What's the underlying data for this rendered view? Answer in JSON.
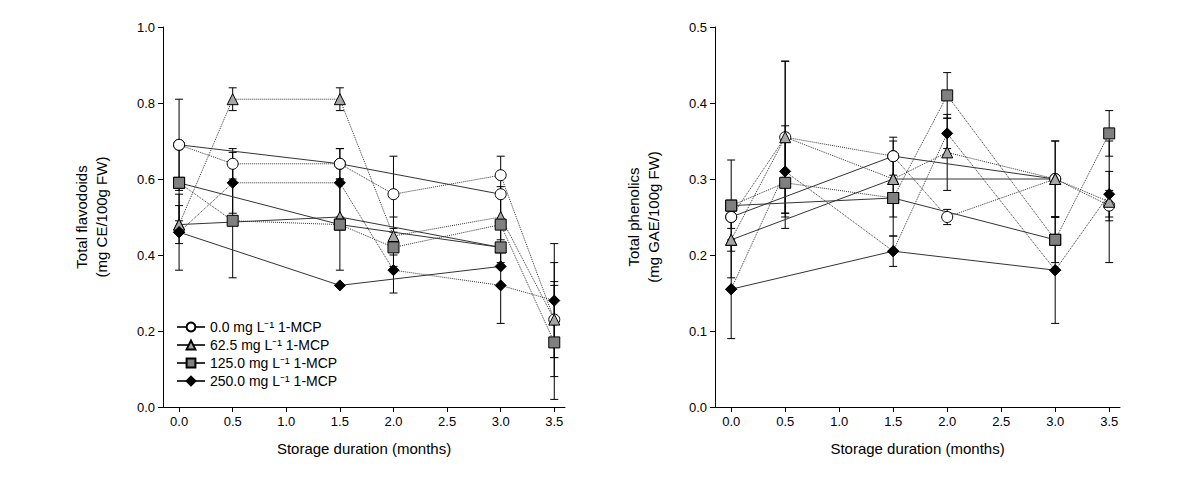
{
  "chart_data": [
    {
      "type": "line",
      "x_label": "Storage duration (months)",
      "y_label": "Total flavodoids\n(mg CE/100g FW)",
      "xlim": [
        -0.15,
        3.6
      ],
      "xticks": [
        {
          "value": 0,
          "label": "0.0"
        },
        0.5,
        {
          "value": 1,
          "label": "1.0"
        },
        1.5,
        {
          "value": 2,
          "label": "2.0"
        },
        2.5,
        {
          "value": 3,
          "label": "3.0"
        },
        3.5
      ],
      "ylim": [
        0,
        1
      ],
      "yticks": [
        {
          "value": 0,
          "label": "0.0"
        },
        0.2,
        0.4,
        0.6,
        0.8,
        {
          "value": 1,
          "label": "1.0"
        }
      ],
      "grid": false,
      "legend": "lower left",
      "series": [
        {
          "name": "0.0 mg L⁻¹ 1-MCP",
          "color": "#ffffff",
          "marker": "circle",
          "line_style": "solid",
          "x": [
            0,
            1.5,
            3
          ],
          "values": [
            0.69,
            0.64,
            0.56
          ]
        },
        {
          "name": "0.0 mg L⁻¹ 1-MCP",
          "color": "#ffffff",
          "marker": "circle",
          "line_style": "dotted",
          "x": [
            0,
            0.5,
            1.5,
            2,
            3,
            3.5
          ],
          "values": [
            0.69,
            0.64,
            0.64,
            0.56,
            0.61,
            0.23
          ],
          "errors": [
            0.12,
            0.04,
            0.04,
            0.1,
            0.05,
            0.1
          ]
        },
        {
          "name": "62.5 mg L⁻¹ 1-MCP",
          "color": "#a6a6a6",
          "marker": "triangle",
          "line_style": "solid",
          "x": [
            0,
            1.5,
            3
          ],
          "values": [
            0.48,
            0.5,
            0.42
          ]
        },
        {
          "name": "62.5 mg L⁻¹ 1-MCP",
          "color": "#a6a6a6",
          "marker": "triangle",
          "line_style": "dotted",
          "x": [
            0,
            0.5,
            1.5,
            2,
            3,
            3.5
          ],
          "values": [
            0.48,
            0.81,
            0.81,
            0.45,
            0.5,
            0.23
          ],
          "errors": [
            0.05,
            0.03,
            0.03,
            0.05,
            0.06,
            0.15
          ]
        },
        {
          "name": "125.0 mg L⁻¹ 1-MCP",
          "color": "#808080",
          "marker": "square",
          "line_style": "solid",
          "x": [
            0,
            1.5,
            3
          ],
          "values": [
            0.59,
            0.48,
            0.42
          ]
        },
        {
          "name": "125.0 mg L⁻¹ 1-MCP",
          "color": "#808080",
          "marker": "square",
          "line_style": "dotted",
          "x": [
            0,
            0.5,
            1.5,
            2,
            3,
            3.5
          ],
          "values": [
            0.59,
            0.49,
            0.48,
            0.42,
            0.48,
            0.17
          ],
          "errors": [
            0.1,
            0.15,
            0.12,
            0.05,
            0.1,
            0.15
          ]
        },
        {
          "name": "250.0 mg L⁻¹ 1-MCP",
          "color": "#000000",
          "marker": "diamond",
          "line_style": "solid",
          "x": [
            0,
            1.5,
            3
          ],
          "values": [
            0.46,
            0.32,
            0.37
          ]
        },
        {
          "name": "250.0 mg L⁻¹ 1-MCP",
          "color": "#000000",
          "marker": "diamond",
          "line_style": "dotted",
          "x": [
            0,
            0.5,
            1.5,
            2,
            3,
            3.5
          ],
          "values": [
            0.46,
            0.59,
            0.59,
            0.36,
            0.32,
            0.28
          ],
          "errors": [
            0.1,
            0.08,
            0.09,
            0.06,
            0.1,
            0.15
          ]
        }
      ]
    },
    {
      "type": "line",
      "x_label": "Storage duration (months)",
      "y_label": "Total phenolics\n(mg GAE/100g FW)",
      "xlim": [
        -0.15,
        3.6
      ],
      "xticks": [
        {
          "value": 0,
          "label": "0.0"
        },
        0.5,
        {
          "value": 1,
          "label": "1.0"
        },
        1.5,
        {
          "value": 2,
          "label": "2.0"
        },
        2.5,
        {
          "value": 3,
          "label": "3.0"
        },
        3.5
      ],
      "ylim": [
        0,
        0.5
      ],
      "yticks": [
        {
          "value": 0,
          "label": "0.0"
        },
        0.1,
        0.2,
        0.3,
        0.4,
        0.5
      ],
      "grid": false,
      "series": [
        {
          "name": "0.0 mg L⁻¹ 1-MCP",
          "color": "#ffffff",
          "marker": "circle",
          "line_style": "solid",
          "x": [
            0,
            1.5,
            3
          ],
          "values": [
            0.25,
            0.33,
            0.3
          ]
        },
        {
          "name": "0.0 mg L⁻¹ 1-MCP",
          "color": "#ffffff",
          "marker": "circle",
          "line_style": "dotted",
          "x": [
            0,
            0.5,
            1.5,
            2,
            3,
            3.5
          ],
          "values": [
            0.25,
            0.355,
            0.33,
            0.25,
            0.3,
            0.265
          ],
          "errors": [
            0.015,
            0.1,
            0.025,
            0.01,
            0.05,
            0.02
          ]
        },
        {
          "name": "62.5 mg L⁻¹ 1-MCP",
          "color": "#a6a6a6",
          "marker": "triangle",
          "line_style": "solid",
          "x": [
            0,
            1.5,
            3
          ],
          "values": [
            0.22,
            0.3,
            0.3
          ]
        },
        {
          "name": "62.5 mg L⁻¹ 1-MCP",
          "color": "#a6a6a6",
          "marker": "triangle",
          "line_style": "dotted",
          "x": [
            0,
            0.5,
            1.5,
            2,
            3,
            3.5
          ],
          "values": [
            0.22,
            0.355,
            0.3,
            0.335,
            0.3,
            0.27
          ],
          "errors": [
            0.05,
            0.1,
            0.05,
            0.05,
            0.05,
            0.08
          ]
        },
        {
          "name": "125.0 mg L⁻¹ 1-MCP",
          "color": "#808080",
          "marker": "square",
          "line_style": "solid",
          "x": [
            0,
            1.5,
            3
          ],
          "values": [
            0.265,
            0.275,
            0.22
          ]
        },
        {
          "name": "125.0 mg L⁻¹ 1-MCP",
          "color": "#808080",
          "marker": "square",
          "line_style": "dotted",
          "x": [
            0,
            0.5,
            1.5,
            2,
            3,
            3.5
          ],
          "values": [
            0.265,
            0.295,
            0.275,
            0.41,
            0.22,
            0.36
          ],
          "errors": [
            0.06,
            0.06,
            0.05,
            0.03,
            0.03,
            0.03
          ]
        },
        {
          "name": "250.0 mg L⁻¹ 1-MCP",
          "color": "#000000",
          "marker": "diamond",
          "line_style": "solid",
          "x": [
            0,
            1.5,
            3
          ],
          "values": [
            0.155,
            0.205,
            0.18
          ]
        },
        {
          "name": "250.0 mg L⁻¹ 1-MCP",
          "color": "#000000",
          "marker": "diamond",
          "line_style": "dotted",
          "x": [
            0,
            0.5,
            1.5,
            2,
            3,
            3.5
          ],
          "values": [
            0.155,
            0.31,
            0.205,
            0.36,
            0.18,
            0.28
          ],
          "errors": [
            0.065,
            0.06,
            0.02,
            0.02,
            0.07,
            0.03
          ]
        }
      ]
    }
  ]
}
